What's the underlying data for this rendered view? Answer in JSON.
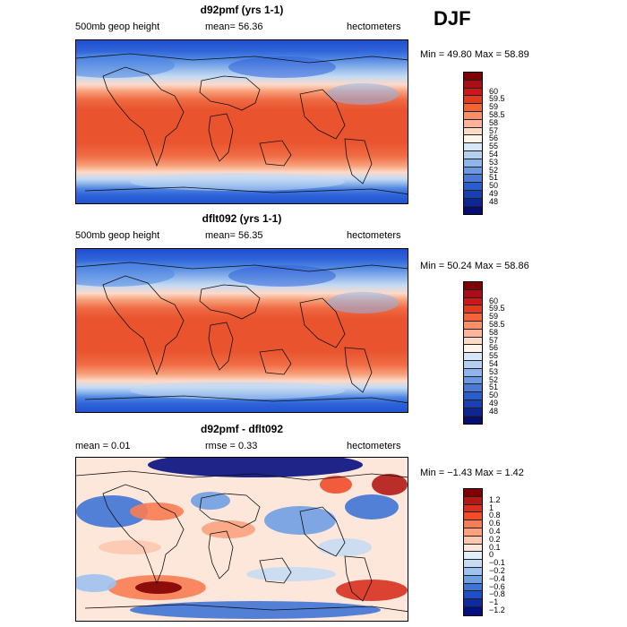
{
  "season": "DJF",
  "panels": [
    {
      "title": "d92pmf (yrs 1-1)",
      "left_label": "500mb geop height",
      "mean_label": "mean=  56.36",
      "units": "hectometers",
      "range_label": "Min =  49.80 Max =  58.89",
      "type": "field",
      "legend_colors": [
        "#7f0000",
        "#a50f15",
        "#cb181d",
        "#e13b1f",
        "#f0663a",
        "#f88f68",
        "#fcb59b",
        "#fdd9c8",
        "#fff3ea",
        "#d8e7f7",
        "#b4cff0",
        "#8fb5ea",
        "#6b98e0",
        "#4a7ad6",
        "#2b5ccc",
        "#1a3fb3",
        "#0e2690",
        "#050e6e"
      ],
      "legend_ticks": [
        "60",
        "59.5",
        "59",
        "58.5",
        "58",
        "57",
        "56",
        "55",
        "54",
        "53",
        "52",
        "51",
        "50",
        "49",
        "48"
      ]
    },
    {
      "title": "dflt092 (yrs 1-1)",
      "left_label": "500mb geop height",
      "mean_label": "mean=  56.35",
      "units": "hectometers",
      "range_label": "Min =  50.24 Max =  58.86",
      "type": "field",
      "legend_colors": [
        "#7f0000",
        "#a50f15",
        "#cb181d",
        "#e13b1f",
        "#f0663a",
        "#f88f68",
        "#fcb59b",
        "#fdd9c8",
        "#fff3ea",
        "#d8e7f7",
        "#b4cff0",
        "#8fb5ea",
        "#6b98e0",
        "#4a7ad6",
        "#2b5ccc",
        "#1a3fb3",
        "#0e2690",
        "#050e6e"
      ],
      "legend_ticks": [
        "60",
        "59.5",
        "59",
        "58.5",
        "58",
        "57",
        "56",
        "55",
        "54",
        "53",
        "52",
        "51",
        "50",
        "49",
        "48"
      ]
    },
    {
      "title": "d92pmf - dflt092",
      "left_label": "mean =    0.01",
      "mean_label": "rmse =    0.33",
      "units": "hectometers",
      "range_label": "Min =  −1.43 Max =    1.42",
      "type": "diff",
      "legend_colors": [
        "#7f0000",
        "#b31a15",
        "#d7301f",
        "#f04e2a",
        "#f87c52",
        "#fca27f",
        "#fdc7ae",
        "#fde6da",
        "#e3eefa",
        "#c6dcf4",
        "#9ec2ee",
        "#6f9fe3",
        "#3f74d6",
        "#1f4fc2",
        "#0d2aa0",
        "#050e7e"
      ],
      "legend_ticks": [
        "1.2",
        "1",
        "0.8",
        "0.6",
        "0.4",
        "0.2",
        "0.1",
        "0",
        "−0.1",
        "−0.2",
        "−0.4",
        "−0.6",
        "−0.8",
        "−1",
        "−1.2"
      ]
    }
  ]
}
